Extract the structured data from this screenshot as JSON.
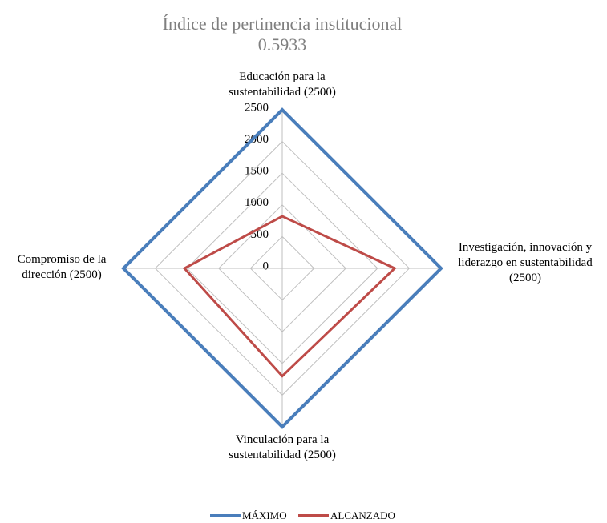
{
  "chart_data": {
    "type": "radar",
    "title": "Índice de pertinencia institucional",
    "subtitle": "0.5933",
    "categories": [
      "Educación para la sustentabilidad (2500)",
      "Investigación, innovación y liderazgo en sustentabilidad (2500)",
      "Vinculación para la sustentabilidad (2500)",
      "Compromiso de la dirección (2500)"
    ],
    "series": [
      {
        "name": "MÁXIMO",
        "color": "#4a7ebb",
        "values": [
          2500,
          2500,
          2500,
          2500
        ]
      },
      {
        "name": "ALCANZADO",
        "color": "#be4b48",
        "values": [
          820,
          1770,
          1700,
          1540
        ]
      }
    ],
    "rlim": [
      0,
      2500
    ],
    "rticks": [
      0,
      500,
      1000,
      1500,
      2000,
      2500
    ],
    "grid": true,
    "legend": "bottom"
  }
}
